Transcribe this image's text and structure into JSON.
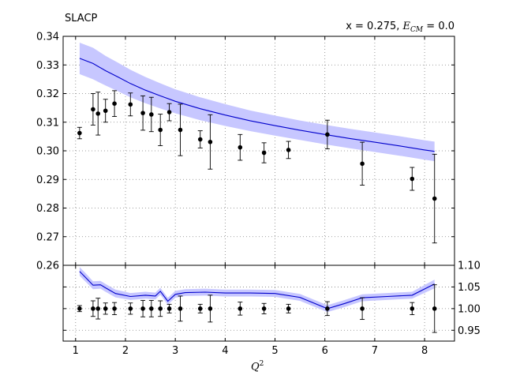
{
  "chart_data": [
    {
      "type": "scatter",
      "panel": "main",
      "title": "SLACP",
      "title_right_prefix": "x = 0.275, ",
      "title_right_var": "E",
      "title_right_sub": "CM",
      "title_right_suffix": " = 0.0",
      "xlabel_var": "Q",
      "xlabel_exp": "2",
      "xlim": [
        0.75,
        8.6
      ],
      "ylim": [
        0.26,
        0.34
      ],
      "xticks": [
        "1",
        "2",
        "3",
        "4",
        "5",
        "6",
        "7",
        "8"
      ],
      "yticks": [
        "0.26",
        "0.27",
        "0.28",
        "0.29",
        "0.30",
        "0.31",
        "0.32",
        "0.33",
        "0.34"
      ],
      "grid": true,
      "data_points": {
        "x": [
          1.08,
          1.35,
          1.45,
          1.6,
          1.78,
          2.1,
          2.35,
          2.52,
          2.7,
          2.88,
          3.1,
          3.5,
          3.7,
          4.3,
          4.78,
          5.27,
          6.05,
          6.75,
          7.75,
          8.2
        ],
        "y": [
          0.3062,
          0.3145,
          0.313,
          0.314,
          0.3165,
          0.3162,
          0.3132,
          0.3127,
          0.3073,
          0.3135,
          0.3073,
          0.304,
          0.3031,
          0.3012,
          0.2993,
          0.3003,
          0.3057,
          0.2955,
          0.2902,
          0.2833
        ],
        "yerr": [
          0.002,
          0.0055,
          0.0075,
          0.004,
          0.0045,
          0.004,
          0.006,
          0.006,
          0.0055,
          0.003,
          0.009,
          0.003,
          0.0095,
          0.0045,
          0.0035,
          0.003,
          0.005,
          0.0075,
          0.004,
          0.0155
        ]
      },
      "theory": {
        "x": [
          1.08,
          1.35,
          1.6,
          1.85,
          2.1,
          2.4,
          2.7,
          3.0,
          3.5,
          4.0,
          4.5,
          5.0,
          5.5,
          6.0,
          6.5,
          7.0,
          7.5,
          8.0,
          8.2
        ],
        "y": [
          0.3323,
          0.3305,
          0.328,
          0.3258,
          0.3235,
          0.3212,
          0.3192,
          0.3173,
          0.3147,
          0.3125,
          0.3105,
          0.3088,
          0.3072,
          0.3057,
          0.3043,
          0.303,
          0.3017,
          0.3003,
          0.2998
        ],
        "band": [
          0.0055,
          0.0055,
          0.0052,
          0.005,
          0.0048,
          0.0046,
          0.0044,
          0.0042,
          0.004,
          0.0038,
          0.0036,
          0.0035,
          0.0034,
          0.0034,
          0.0034,
          0.0034,
          0.0034,
          0.0034,
          0.0034
        ]
      },
      "colors": {
        "theory": "#0000cc",
        "band": "#c7c7ff",
        "data": "#000000",
        "grid": "#808080"
      }
    },
    {
      "type": "scatter",
      "panel": "ratio",
      "xlim": [
        0.75,
        8.6
      ],
      "ylim": [
        0.925,
        1.1
      ],
      "yticks_right": [
        "0.95",
        "1.00",
        "1.05",
        "1.10"
      ],
      "grid": true,
      "data_points": {
        "x": [
          1.08,
          1.35,
          1.45,
          1.6,
          1.78,
          2.1,
          2.35,
          2.52,
          2.7,
          2.88,
          3.1,
          3.5,
          3.7,
          4.3,
          4.78,
          5.27,
          6.05,
          6.75,
          7.75,
          8.2
        ],
        "y": [
          1.0,
          1.0,
          1.0,
          1.0,
          1.0,
          1.0,
          1.0,
          1.0,
          1.0,
          1.0,
          1.0,
          1.0,
          1.0,
          1.0,
          1.0,
          1.0,
          1.0,
          1.0,
          1.0,
          1.0
        ],
        "yerr": [
          0.007,
          0.018,
          0.024,
          0.013,
          0.014,
          0.013,
          0.019,
          0.019,
          0.018,
          0.01,
          0.029,
          0.01,
          0.031,
          0.015,
          0.012,
          0.01,
          0.016,
          0.025,
          0.014,
          0.055
        ]
      },
      "theory": {
        "x": [
          1.08,
          1.2,
          1.35,
          1.5,
          1.6,
          1.8,
          2.1,
          2.4,
          2.6,
          2.7,
          2.85,
          3.0,
          3.2,
          3.6,
          4.0,
          4.5,
          5.0,
          5.5,
          6.05,
          6.4,
          6.75,
          7.25,
          7.75,
          8.2
        ],
        "y": [
          1.086,
          1.072,
          1.054,
          1.055,
          1.048,
          1.035,
          1.028,
          1.031,
          1.029,
          1.04,
          1.017,
          1.033,
          1.037,
          1.038,
          1.036,
          1.036,
          1.035,
          1.026,
          1.0,
          1.012,
          1.025,
          1.028,
          1.031,
          1.057
        ],
        "band": [
          0.01,
          0.01,
          0.009,
          0.009,
          0.009,
          0.009,
          0.008,
          0.008,
          0.008,
          0.008,
          0.008,
          0.008,
          0.008,
          0.008,
          0.008,
          0.008,
          0.008,
          0.008,
          0.008,
          0.008,
          0.008,
          0.008,
          0.008,
          0.01
        ]
      }
    }
  ]
}
